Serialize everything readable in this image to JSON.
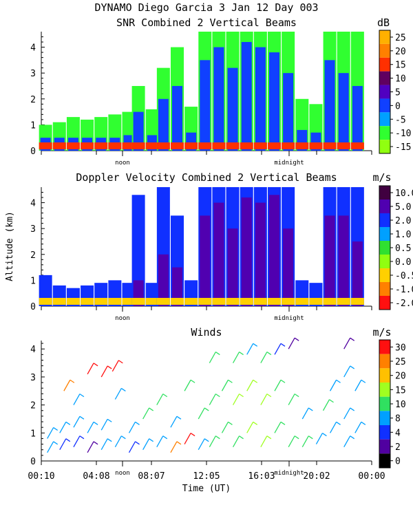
{
  "header": {
    "title": "DYNAMO Diego Garcia    3 Jan 12 Day 003"
  },
  "axis_common": {
    "ylabel": "Altitude (km)",
    "xlabel": "Time (UT)",
    "y_ticks": [
      "0",
      "1",
      "2",
      "3",
      "4"
    ],
    "x_ticks": [
      "00:10",
      "04:08",
      "08:07",
      "12:05",
      "16:03",
      "20:02",
      "00:00"
    ],
    "noon_label": "noon",
    "midnight_label": "midnight"
  },
  "chart_data": [
    {
      "id": "snr",
      "type": "heatmap",
      "title": "SNR Combined 2 Vertical Beams",
      "unit": "dB",
      "ylim": [
        0,
        4.6
      ],
      "xlim_hours": [
        0.17,
        24.0
      ],
      "colorbar": {
        "labels": [
          "25",
          "20",
          "15",
          "10",
          "5",
          "0",
          "-5",
          "-10",
          "-15"
        ],
        "colors": [
          "#ffb000",
          "#ff8000",
          "#ff3000",
          "#600060",
          "#5000c0",
          "#1040ff",
          "#00a0ff",
          "#30ff30",
          "#90ff10"
        ]
      },
      "columns": [
        {
          "t": 0.5,
          "top": 1.0,
          "core": 0.5
        },
        {
          "t": 1.5,
          "top": 1.1,
          "core": 0.5
        },
        {
          "t": 2.5,
          "top": 1.3,
          "core": 0.5
        },
        {
          "t": 3.5,
          "top": 1.2,
          "core": 0.5
        },
        {
          "t": 4.5,
          "top": 1.3,
          "core": 0.5
        },
        {
          "t": 5.5,
          "top": 1.4,
          "core": 0.5
        },
        {
          "t": 6.5,
          "top": 1.5,
          "core": 0.6
        },
        {
          "t": 7.2,
          "top": 2.5,
          "core": 1.5
        },
        {
          "t": 8.2,
          "top": 1.6,
          "core": 0.6
        },
        {
          "t": 9.0,
          "top": 3.2,
          "core": 2.0
        },
        {
          "t": 10.0,
          "top": 4.0,
          "core": 2.5
        },
        {
          "t": 11.0,
          "top": 1.7,
          "core": 0.7
        },
        {
          "t": 12.0,
          "top": 4.6,
          "core": 3.5
        },
        {
          "t": 13.0,
          "top": 4.6,
          "core": 4.0
        },
        {
          "t": 14.0,
          "top": 4.6,
          "core": 3.2
        },
        {
          "t": 15.0,
          "top": 4.6,
          "core": 4.2
        },
        {
          "t": 16.0,
          "top": 4.6,
          "core": 4.0
        },
        {
          "t": 17.0,
          "top": 4.6,
          "core": 3.8
        },
        {
          "t": 18.0,
          "top": 4.6,
          "core": 3.0
        },
        {
          "t": 19.0,
          "top": 2.0,
          "core": 0.8
        },
        {
          "t": 20.0,
          "top": 1.8,
          "core": 0.7
        },
        {
          "t": 21.0,
          "top": 4.6,
          "core": 3.5
        },
        {
          "t": 22.0,
          "top": 4.6,
          "core": 3.0
        },
        {
          "t": 23.0,
          "top": 4.6,
          "core": 2.5
        }
      ]
    },
    {
      "id": "doppler",
      "type": "heatmap",
      "title": "Doppler Velocity Combined 2 Vertical Beams",
      "unit": "m/s",
      "ylim": [
        0,
        4.6
      ],
      "xlim_hours": [
        0.17,
        24.0
      ],
      "colorbar": {
        "labels": [
          "10.0",
          "5.0",
          "2.0",
          "1.0",
          "0.5",
          "0.0",
          "-0.5",
          "-1.0",
          "-2.0"
        ],
        "colors": [
          "#400040",
          "#5000b0",
          "#1030ff",
          "#00a0ff",
          "#30e030",
          "#90ff10",
          "#ffd000",
          "#ff8000",
          "#ff1010"
        ]
      },
      "columns": [
        {
          "t": 0.5,
          "top": 1.2,
          "core": 0.0
        },
        {
          "t": 1.5,
          "top": 0.8,
          "core": 0.0
        },
        {
          "t": 2.5,
          "top": 0.7,
          "core": 0.0
        },
        {
          "t": 3.5,
          "top": 0.8,
          "core": 0.0
        },
        {
          "t": 4.5,
          "top": 0.9,
          "core": 0.0
        },
        {
          "t": 5.5,
          "top": 1.0,
          "core": 0.0
        },
        {
          "t": 6.5,
          "top": 0.9,
          "core": 0.0
        },
        {
          "t": 7.2,
          "top": 4.3,
          "core": 1.0
        },
        {
          "t": 8.2,
          "top": 0.9,
          "core": 0.0
        },
        {
          "t": 9.0,
          "top": 4.6,
          "core": 2.0
        },
        {
          "t": 10.0,
          "top": 3.5,
          "core": 1.5
        },
        {
          "t": 11.0,
          "top": 1.0,
          "core": 0.0
        },
        {
          "t": 12.0,
          "top": 4.6,
          "core": 3.5
        },
        {
          "t": 13.0,
          "top": 4.6,
          "core": 4.0
        },
        {
          "t": 14.0,
          "top": 4.6,
          "core": 3.0
        },
        {
          "t": 15.0,
          "top": 4.6,
          "core": 4.2
        },
        {
          "t": 16.0,
          "top": 4.6,
          "core": 4.0
        },
        {
          "t": 17.0,
          "top": 4.6,
          "core": 4.3
        },
        {
          "t": 18.0,
          "top": 4.6,
          "core": 3.0
        },
        {
          "t": 19.0,
          "top": 1.0,
          "core": 0.0
        },
        {
          "t": 20.0,
          "top": 0.9,
          "core": 0.0
        },
        {
          "t": 21.0,
          "top": 4.6,
          "core": 3.5
        },
        {
          "t": 22.0,
          "top": 4.6,
          "core": 3.5
        },
        {
          "t": 23.0,
          "top": 4.6,
          "core": 2.5
        }
      ]
    },
    {
      "id": "winds",
      "type": "scatter",
      "title": "Winds",
      "unit": "m/s",
      "ylim": [
        0,
        4.3
      ],
      "xlim_hours": [
        0.17,
        24.0
      ],
      "colorbar": {
        "labels": [
          "30",
          "25",
          "20",
          "15",
          "10",
          "8",
          "4",
          "2",
          "0"
        ],
        "colors": [
          "#ff1010",
          "#ff8000",
          "#ffc000",
          "#a0ff20",
          "#30e060",
          "#00a0ff",
          "#1030ff",
          "#5000a0",
          "#000000"
        ]
      },
      "barbs": [
        {
          "t": 0.6,
          "alt": 0.3,
          "speed": 10
        },
        {
          "t": 0.6,
          "alt": 0.8,
          "speed": 10
        },
        {
          "t": 1.5,
          "alt": 0.4,
          "speed": 8
        },
        {
          "t": 1.5,
          "alt": 1.0,
          "speed": 10
        },
        {
          "t": 1.8,
          "alt": 2.5,
          "speed": 25
        },
        {
          "t": 2.5,
          "alt": 0.5,
          "speed": 8
        },
        {
          "t": 2.5,
          "alt": 1.2,
          "speed": 10
        },
        {
          "t": 2.5,
          "alt": 2.0,
          "speed": 12
        },
        {
          "t": 3.5,
          "alt": 0.3,
          "speed": 4
        },
        {
          "t": 3.5,
          "alt": 1.0,
          "speed": 10
        },
        {
          "t": 3.5,
          "alt": 3.1,
          "speed": 30
        },
        {
          "t": 4.5,
          "alt": 0.4,
          "speed": 10
        },
        {
          "t": 4.5,
          "alt": 1.1,
          "speed": 10
        },
        {
          "t": 4.5,
          "alt": 3.0,
          "speed": 30
        },
        {
          "t": 5.3,
          "alt": 3.2,
          "speed": 30
        },
        {
          "t": 5.5,
          "alt": 0.5,
          "speed": 10
        },
        {
          "t": 5.5,
          "alt": 2.2,
          "speed": 12
        },
        {
          "t": 6.5,
          "alt": 0.3,
          "speed": 8
        },
        {
          "t": 6.5,
          "alt": 1.0,
          "speed": 10
        },
        {
          "t": 7.5,
          "alt": 0.4,
          "speed": 10
        },
        {
          "t": 7.5,
          "alt": 1.5,
          "speed": 15
        },
        {
          "t": 8.5,
          "alt": 0.5,
          "speed": 10
        },
        {
          "t": 8.5,
          "alt": 2.0,
          "speed": 15
        },
        {
          "t": 9.5,
          "alt": 0.3,
          "speed": 25
        },
        {
          "t": 9.5,
          "alt": 1.2,
          "speed": 12
        },
        {
          "t": 10.5,
          "alt": 0.6,
          "speed": 30
        },
        {
          "t": 10.5,
          "alt": 2.5,
          "speed": 15
        },
        {
          "t": 11.5,
          "alt": 0.4,
          "speed": 10
        },
        {
          "t": 11.5,
          "alt": 1.5,
          "speed": 15
        },
        {
          "t": 12.3,
          "alt": 0.5,
          "speed": 15
        },
        {
          "t": 12.3,
          "alt": 2.0,
          "speed": 15
        },
        {
          "t": 12.3,
          "alt": 3.5,
          "speed": 15
        },
        {
          "t": 13.2,
          "alt": 1.0,
          "speed": 15
        },
        {
          "t": 13.2,
          "alt": 2.5,
          "speed": 15
        },
        {
          "t": 14.0,
          "alt": 0.5,
          "speed": 15
        },
        {
          "t": 14.0,
          "alt": 2.0,
          "speed": 18
        },
        {
          "t": 14.0,
          "alt": 3.5,
          "speed": 15
        },
        {
          "t": 15.0,
          "alt": 1.0,
          "speed": 20
        },
        {
          "t": 15.0,
          "alt": 2.5,
          "speed": 20
        },
        {
          "t": 15.0,
          "alt": 3.8,
          "speed": 10
        },
        {
          "t": 16.0,
          "alt": 0.5,
          "speed": 18
        },
        {
          "t": 16.0,
          "alt": 2.0,
          "speed": 20
        },
        {
          "t": 16.0,
          "alt": 3.5,
          "speed": 15
        },
        {
          "t": 17.0,
          "alt": 1.0,
          "speed": 15
        },
        {
          "t": 17.0,
          "alt": 2.5,
          "speed": 15
        },
        {
          "t": 17.0,
          "alt": 3.8,
          "speed": 8
        },
        {
          "t": 18.0,
          "alt": 0.5,
          "speed": 15
        },
        {
          "t": 18.0,
          "alt": 2.0,
          "speed": 15
        },
        {
          "t": 18.0,
          "alt": 4.0,
          "speed": 4
        },
        {
          "t": 19.0,
          "alt": 0.5,
          "speed": 15
        },
        {
          "t": 19.0,
          "alt": 1.5,
          "speed": 12
        },
        {
          "t": 20.0,
          "alt": 0.6,
          "speed": 12
        },
        {
          "t": 20.5,
          "alt": 1.8,
          "speed": 15
        },
        {
          "t": 21.0,
          "alt": 1.0,
          "speed": 10
        },
        {
          "t": 21.0,
          "alt": 2.5,
          "speed": 12
        },
        {
          "t": 22.0,
          "alt": 0.5,
          "speed": 10
        },
        {
          "t": 22.0,
          "alt": 1.5,
          "speed": 10
        },
        {
          "t": 22.0,
          "alt": 3.0,
          "speed": 10
        },
        {
          "t": 22.0,
          "alt": 4.0,
          "speed": 4
        },
        {
          "t": 22.8,
          "alt": 1.0,
          "speed": 12
        },
        {
          "t": 22.8,
          "alt": 2.5,
          "speed": 12
        }
      ]
    }
  ]
}
